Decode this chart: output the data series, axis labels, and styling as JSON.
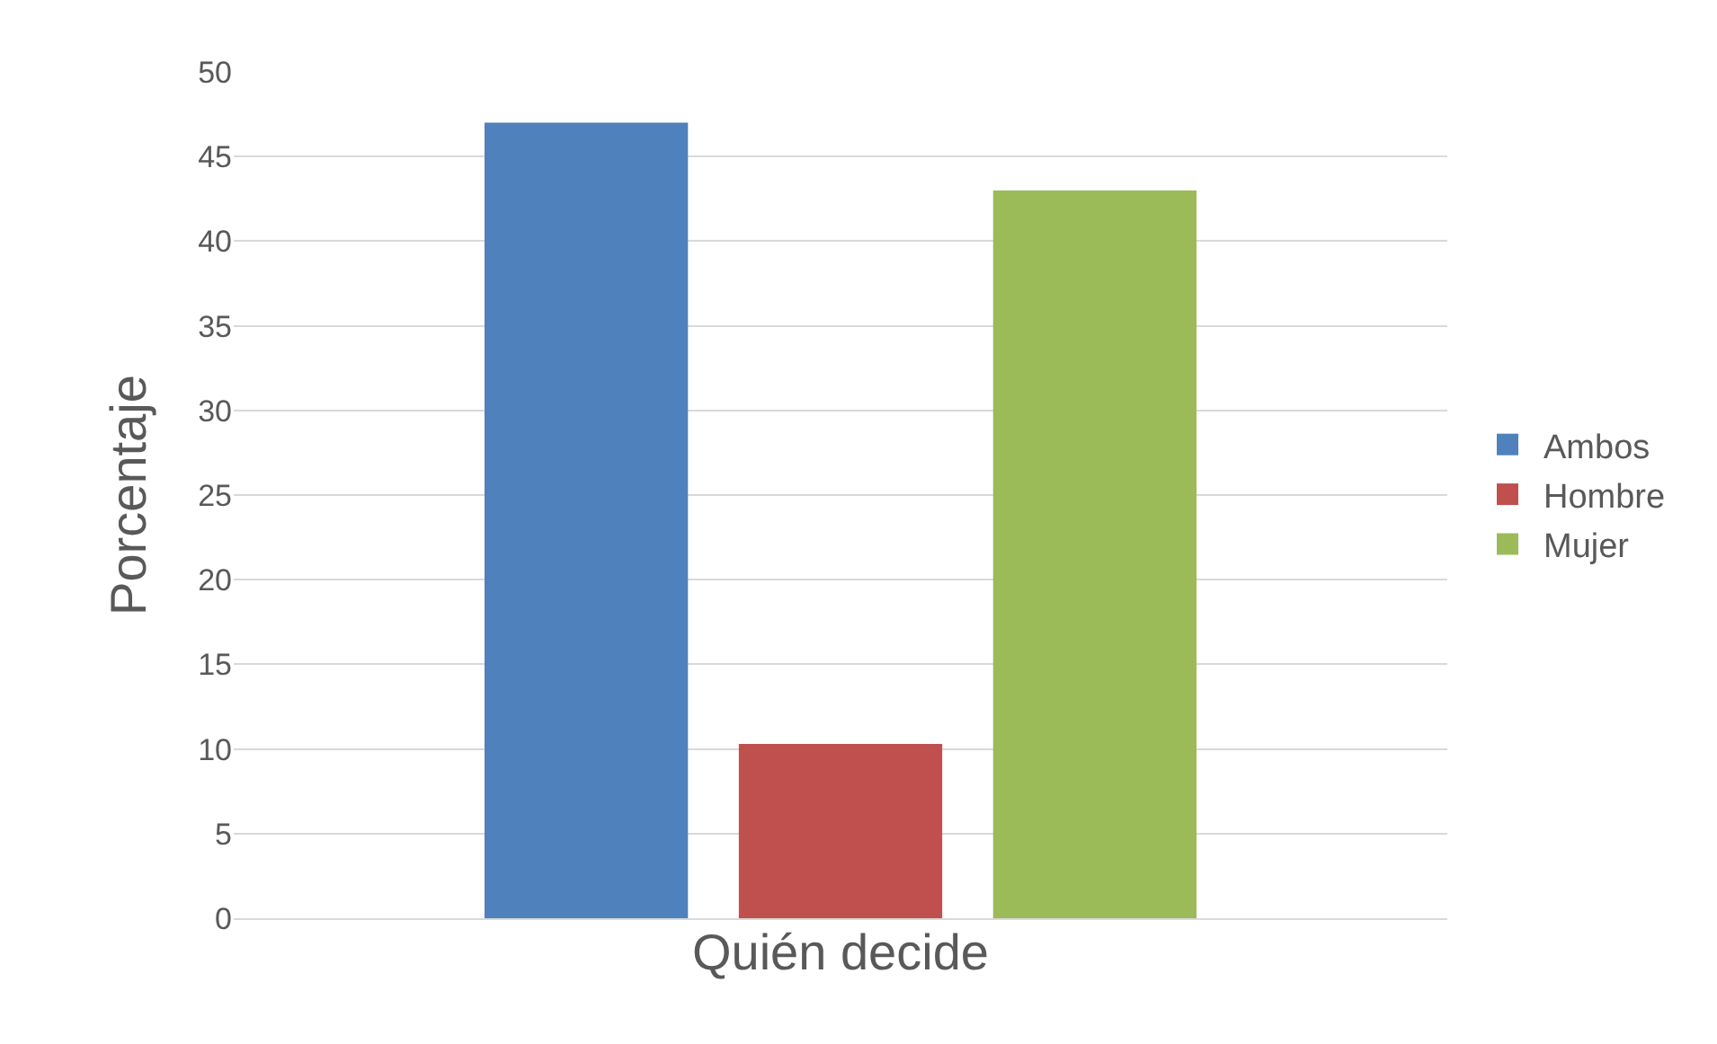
{
  "chart_data": {
    "type": "bar",
    "xlabel": "Quién decide",
    "ylabel": "Porcentaje",
    "categories": [
      null
    ],
    "series": [
      {
        "name": "Ambos",
        "color": "#4f81bd",
        "values": [
          47
        ]
      },
      {
        "name": "Hombre",
        "color": "#c0504d",
        "values": [
          10.3
        ]
      },
      {
        "name": "Mujer",
        "color": "#9bbb59",
        "values": [
          43
        ]
      }
    ],
    "ylim": [
      0,
      50
    ],
    "yticks": [
      0,
      5,
      10,
      15,
      20,
      25,
      30,
      35,
      40,
      45,
      50
    ],
    "grid": "y",
    "legend": "right"
  }
}
